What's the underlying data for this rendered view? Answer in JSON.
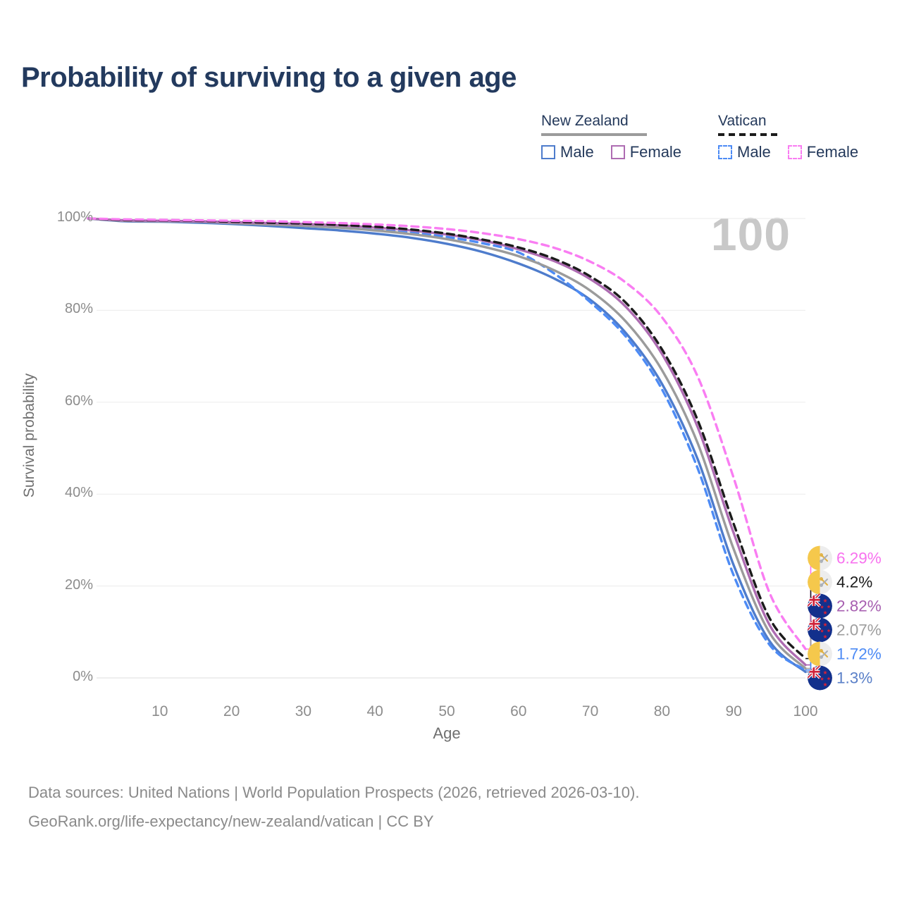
{
  "title": "Probability of surviving to a given age",
  "watermark": "100",
  "legend": {
    "groups": [
      {
        "name": "New Zealand",
        "line_style": "solid",
        "line_color": "#9b9b9b",
        "items": [
          {
            "label": "Male",
            "color": "#4e7ccc",
            "style": "solid"
          },
          {
            "label": "Female",
            "color": "#ae6cb2",
            "style": "solid"
          }
        ]
      },
      {
        "name": "Vatican",
        "line_style": "dashed",
        "line_color": "#1b1b1b",
        "items": [
          {
            "label": "Male",
            "color": "#4d8bf5",
            "style": "dashed"
          },
          {
            "label": "Female",
            "color": "#f97df2",
            "style": "dashed"
          }
        ]
      }
    ]
  },
  "chart_data": {
    "type": "line",
    "title": "Probability of surviving to a given age",
    "xlabel": "Age",
    "ylabel": "Survival probability",
    "xlim": [
      0,
      100
    ],
    "ylim": [
      0,
      100
    ],
    "grid": "horizontal",
    "x_ticks": [
      10,
      20,
      30,
      40,
      50,
      60,
      70,
      80,
      90,
      100
    ],
    "y_ticks": [
      {
        "value": 0,
        "label": "0%"
      },
      {
        "value": 20,
        "label": "20%"
      },
      {
        "value": 40,
        "label": "40%"
      },
      {
        "value": 60,
        "label": "60%"
      },
      {
        "value": 80,
        "label": "80%"
      },
      {
        "value": 100,
        "label": "100%"
      }
    ],
    "x": [
      0,
      5,
      10,
      15,
      20,
      25,
      30,
      35,
      40,
      45,
      50,
      55,
      60,
      65,
      70,
      75,
      80,
      85,
      90,
      95,
      100
    ],
    "series": [
      {
        "name": "New Zealand — Male",
        "country": "New Zealand",
        "sex": "Male",
        "style": "solid",
        "color": "#4e7ccc",
        "values": [
          100,
          99.4,
          99.3,
          99.1,
          98.8,
          98.4,
          97.9,
          97.4,
          96.7,
          95.8,
          94.5,
          92.7,
          90.2,
          86.9,
          82.3,
          75.0,
          64.0,
          47.5,
          24.5,
          8.0,
          1.3
        ],
        "end_label": {
          "text": "1.3%",
          "color": "#5b80c8",
          "flag": "new-zealand-flag-icon"
        }
      },
      {
        "name": "Vatican — Male",
        "country": "Vatican",
        "sex": "Male",
        "style": "dashed",
        "color": "#4d8bf5",
        "values": [
          100,
          99.6,
          99.5,
          99.4,
          99.2,
          98.9,
          98.6,
          98.2,
          97.7,
          97.0,
          96.0,
          94.6,
          92.6,
          88.0,
          81.8,
          74.2,
          62.8,
          45.5,
          22.3,
          7.2,
          1.72
        ],
        "end_label": {
          "text": "1.72%",
          "color": "#4d8bf5",
          "flag": "vatican-flag-icon"
        }
      },
      {
        "name": "New Zealand — All",
        "country": "New Zealand",
        "sex": "All",
        "style": "solid",
        "color": "#9b9b9b",
        "values": [
          100,
          99.5,
          99.4,
          99.3,
          99.0,
          98.7,
          98.4,
          98.0,
          97.4,
          96.6,
          95.5,
          93.9,
          91.8,
          88.7,
          84.3,
          77.5,
          67.0,
          51.0,
          28.0,
          9.8,
          2.07
        ],
        "end_label": {
          "text": "2.07%",
          "color": "#9e9e9e",
          "flag": "new-zealand-flag-icon"
        }
      },
      {
        "name": "New Zealand — Female",
        "country": "New Zealand",
        "sex": "Female",
        "style": "solid",
        "color": "#ae6cb2",
        "values": [
          100,
          99.6,
          99.5,
          99.4,
          99.2,
          99.0,
          98.8,
          98.5,
          98.0,
          97.4,
          96.5,
          95.2,
          93.3,
          90.7,
          86.8,
          80.7,
          70.5,
          54.5,
          31.5,
          11.5,
          2.82
        ],
        "end_label": {
          "text": "2.82%",
          "color": "#a75fb0",
          "flag": "new-zealand-flag-icon"
        }
      },
      {
        "name": "Vatican — All",
        "country": "Vatican",
        "sex": "All",
        "style": "dashed",
        "color": "#1b1b1b",
        "values": [
          100,
          99.7,
          99.6,
          99.5,
          99.3,
          99.1,
          98.9,
          98.6,
          98.2,
          97.6,
          96.7,
          95.4,
          93.7,
          91.2,
          87.4,
          81.6,
          71.5,
          56.0,
          33.5,
          13.0,
          4.2
        ],
        "end_label": {
          "text": "4.2%",
          "color": "#1b1b1b",
          "flag": "vatican-flag-icon"
        }
      },
      {
        "name": "Vatican — Female",
        "country": "Vatican",
        "sex": "Female",
        "style": "dashed",
        "color": "#f97df2",
        "values": [
          100,
          99.8,
          99.7,
          99.6,
          99.5,
          99.4,
          99.2,
          99.0,
          98.7,
          98.3,
          97.7,
          96.8,
          95.5,
          93.6,
          90.6,
          86.0,
          78.5,
          65.5,
          43.5,
          18.5,
          6.29
        ],
        "end_label": {
          "text": "6.29%",
          "color": "#f871ef",
          "flag": "vatican-flag-icon"
        }
      }
    ]
  },
  "footer": {
    "line1": "Data sources: United Nations | World Population Prospects (2026, retrieved 2026-03-10).",
    "line2": "GeoRank.org/life-expectancy/new-zealand/vatican | CC BY"
  }
}
